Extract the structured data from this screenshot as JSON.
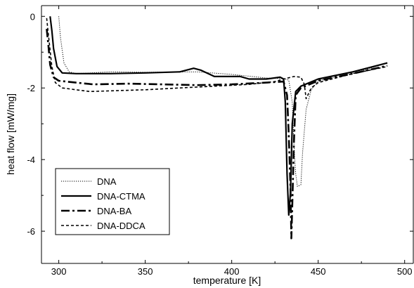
{
  "chart_data": {
    "type": "line",
    "title": "",
    "xlabel": "temperature [K]",
    "ylabel": "heat flow [mW/mg]",
    "xlim": [
      290,
      505
    ],
    "ylim": [
      -6.9,
      0.3
    ],
    "xticks": [
      300,
      350,
      400,
      450,
      500
    ],
    "yticks": [
      0,
      -2,
      -4,
      -6
    ],
    "grid": false,
    "legend_position": "bottom-left",
    "series": [
      {
        "name": "DNA",
        "style": "dotted",
        "points": [
          [
            300,
            0
          ],
          [
            301,
            -0.6
          ],
          [
            303,
            -1.3
          ],
          [
            306,
            -1.55
          ],
          [
            310,
            -1.6
          ],
          [
            330,
            -1.55
          ],
          [
            350,
            -1.56
          ],
          [
            380,
            -1.55
          ],
          [
            400,
            -1.62
          ],
          [
            420,
            -1.72
          ],
          [
            430,
            -1.74
          ],
          [
            433,
            -1.78
          ],
          [
            435,
            -2.4
          ],
          [
            436,
            -3.6
          ],
          [
            437,
            -4.4
          ],
          [
            438,
            -4.75
          ],
          [
            440,
            -4.7
          ],
          [
            441,
            -3.8
          ],
          [
            443,
            -2.6
          ],
          [
            446,
            -2.05
          ],
          [
            450,
            -1.8
          ],
          [
            470,
            -1.6
          ],
          [
            490,
            -1.3
          ]
        ]
      },
      {
        "name": "DNA-CTMA",
        "style": "solid",
        "points": [
          [
            295,
            0
          ],
          [
            296,
            -0.4
          ],
          [
            297,
            -0.9
          ],
          [
            299,
            -1.4
          ],
          [
            302,
            -1.58
          ],
          [
            310,
            -1.6
          ],
          [
            330,
            -1.6
          ],
          [
            350,
            -1.58
          ],
          [
            370,
            -1.55
          ],
          [
            378,
            -1.45
          ],
          [
            382,
            -1.5
          ],
          [
            390,
            -1.68
          ],
          [
            405,
            -1.68
          ],
          [
            410,
            -1.75
          ],
          [
            420,
            -1.75
          ],
          [
            428,
            -1.7
          ],
          [
            430,
            -1.75
          ],
          [
            431,
            -2.4
          ],
          [
            432,
            -4.4
          ],
          [
            433,
            -5.55
          ],
          [
            434,
            -4.9
          ],
          [
            435,
            -3.0
          ],
          [
            437,
            -2.1
          ],
          [
            440,
            -1.95
          ],
          [
            450,
            -1.75
          ],
          [
            470,
            -1.55
          ],
          [
            490,
            -1.3
          ]
        ]
      },
      {
        "name": "DNA-BA",
        "style": "dashdot",
        "points": [
          [
            293,
            -0.35
          ],
          [
            294,
            -0.8
          ],
          [
            295,
            -1.35
          ],
          [
            297,
            -1.7
          ],
          [
            300,
            -1.8
          ],
          [
            310,
            -1.85
          ],
          [
            320,
            -1.9
          ],
          [
            340,
            -1.88
          ],
          [
            360,
            -1.9
          ],
          [
            380,
            -1.92
          ],
          [
            400,
            -1.9
          ],
          [
            420,
            -1.85
          ],
          [
            430,
            -1.82
          ],
          [
            432,
            -2.2
          ],
          [
            433,
            -3.3
          ],
          [
            434,
            -4.8
          ],
          [
            434.5,
            -6.2
          ],
          [
            435,
            -5.3
          ],
          [
            436,
            -3.5
          ],
          [
            437,
            -2.2
          ],
          [
            440,
            -2.0
          ],
          [
            450,
            -1.8
          ],
          [
            470,
            -1.6
          ],
          [
            490,
            -1.38
          ]
        ]
      },
      {
        "name": "DNA-DDCA",
        "style": "dashed",
        "points": [
          [
            293,
            -0.05
          ],
          [
            294,
            -0.5
          ],
          [
            296,
            -1.4
          ],
          [
            298,
            -1.85
          ],
          [
            302,
            -2.0
          ],
          [
            310,
            -2.05
          ],
          [
            318,
            -2.1
          ],
          [
            330,
            -2.08
          ],
          [
            350,
            -2.05
          ],
          [
            370,
            -2.0
          ],
          [
            390,
            -1.95
          ],
          [
            410,
            -1.9
          ],
          [
            425,
            -1.82
          ],
          [
            430,
            -1.75
          ],
          [
            436,
            -1.68
          ],
          [
            440,
            -1.7
          ],
          [
            442,
            -1.9
          ],
          [
            443,
            -2.3
          ],
          [
            446,
            -2.0
          ],
          [
            450,
            -1.85
          ],
          [
            470,
            -1.6
          ],
          [
            490,
            -1.4
          ]
        ]
      }
    ]
  }
}
